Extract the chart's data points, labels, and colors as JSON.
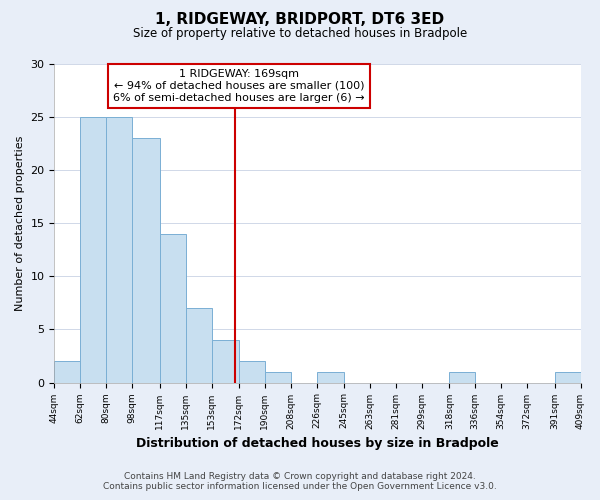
{
  "title": "1, RIDGEWAY, BRIDPORT, DT6 3ED",
  "subtitle": "Size of property relative to detached houses in Bradpole",
  "xlabel": "Distribution of detached houses by size in Bradpole",
  "ylabel": "Number of detached properties",
  "bar_edges": [
    44,
    62,
    80,
    98,
    117,
    135,
    153,
    172,
    190,
    208,
    226,
    245,
    263,
    281,
    299,
    318,
    336,
    354,
    372,
    391,
    409
  ],
  "bar_heights": [
    2,
    25,
    25,
    23,
    14,
    7,
    4,
    2,
    1,
    0,
    1,
    0,
    0,
    0,
    0,
    1,
    0,
    0,
    0,
    1
  ],
  "bar_color": "#c8dff0",
  "bar_edge_color": "#7aafd4",
  "property_line_x": 169,
  "property_line_color": "#cc0000",
  "annotation_title": "1 RIDGEWAY: 169sqm",
  "annotation_line1": "← 94% of detached houses are smaller (100)",
  "annotation_line2": "6% of semi-detached houses are larger (6) →",
  "ylim": [
    0,
    30
  ],
  "tick_labels": [
    "44sqm",
    "62sqm",
    "80sqm",
    "98sqm",
    "117sqm",
    "135sqm",
    "153sqm",
    "172sqm",
    "190sqm",
    "208sqm",
    "226sqm",
    "245sqm",
    "263sqm",
    "281sqm",
    "299sqm",
    "318sqm",
    "336sqm",
    "354sqm",
    "372sqm",
    "391sqm",
    "409sqm"
  ],
  "footer_line1": "Contains HM Land Registry data © Crown copyright and database right 2024.",
  "footer_line2": "Contains public sector information licensed under the Open Government Licence v3.0.",
  "background_color": "#e8eef8",
  "plot_bg_color": "#ffffff",
  "grid_color": "#d0d8e8"
}
